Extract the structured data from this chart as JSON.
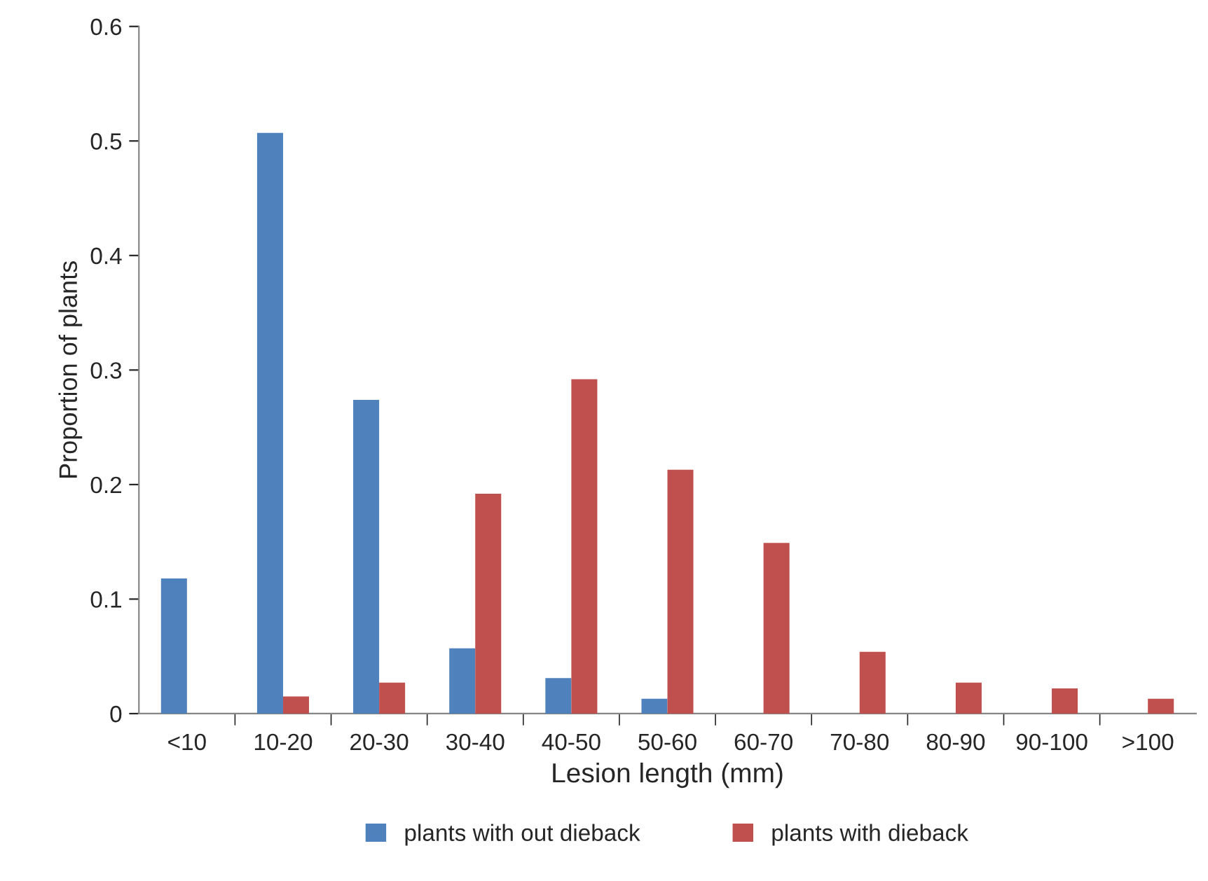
{
  "chart_data": {
    "type": "bar",
    "xlabel": "Lesion length (mm)",
    "ylabel": "Proportion of plants",
    "categories": [
      "<10",
      "10-20",
      "20-30",
      "30-40",
      "40-50",
      "50-60",
      "60-70",
      "70-80",
      "80-90",
      "90-100",
      ">100"
    ],
    "series": [
      {
        "name": "plants with out dieback",
        "color": "#4f81bd",
        "values": [
          0.118,
          0.507,
          0.274,
          0.057,
          0.031,
          0.013,
          0,
          0,
          0,
          0,
          0
        ]
      },
      {
        "name": "plants with dieback",
        "color": "#c0504d",
        "values": [
          0,
          0.015,
          0.027,
          0.192,
          0.292,
          0.213,
          0.149,
          0.054,
          0.027,
          0.022,
          0.013
        ]
      }
    ],
    "ylim": [
      0,
      0.6
    ],
    "yticks": [
      {
        "value": 0,
        "label": "0"
      },
      0.1,
      0.2,
      0.3,
      0.4,
      0.5,
      0.6
    ],
    "grid": false,
    "legend": "bottom"
  }
}
